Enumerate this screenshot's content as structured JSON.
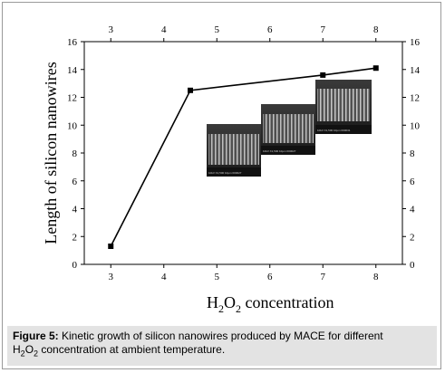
{
  "chart_data": {
    "type": "line",
    "x": [
      3,
      4.5,
      7,
      8
    ],
    "values": [
      1.3,
      12.5,
      13.6,
      14.1
    ],
    "xlim": [
      2.5,
      8.5
    ],
    "ylim": [
      0,
      16
    ],
    "x_ticks": [
      3,
      4,
      5,
      6,
      7,
      8
    ],
    "y_ticks": [
      0,
      2,
      4,
      6,
      8,
      10,
      12,
      14,
      16
    ],
    "ylabel": "Length of silicon nanowires",
    "xlabel": {
      "main": "H",
      "sub1": "2",
      "mid": "O",
      "sub2": "2",
      "rest": " concentration"
    },
    "line_color": "#000000",
    "marker": "square",
    "mirror_axes": true,
    "grid": false
  },
  "sem_inset_labels": [
    "10kV  X1,500   10µm  000027",
    "10kV  X1,500   10µm  000027",
    "10kV  X1,500   10µm  000031"
  ],
  "caption": {
    "bold": "Figure 5:",
    "line1": " Kinetic growth of silicon nanowires produced by MACE for different",
    "line2_pre": "H",
    "line2_sub1": "2",
    "line2_mid": "O",
    "line2_sub2": "2",
    "line2_rest": " concentration at ambient temperature."
  }
}
